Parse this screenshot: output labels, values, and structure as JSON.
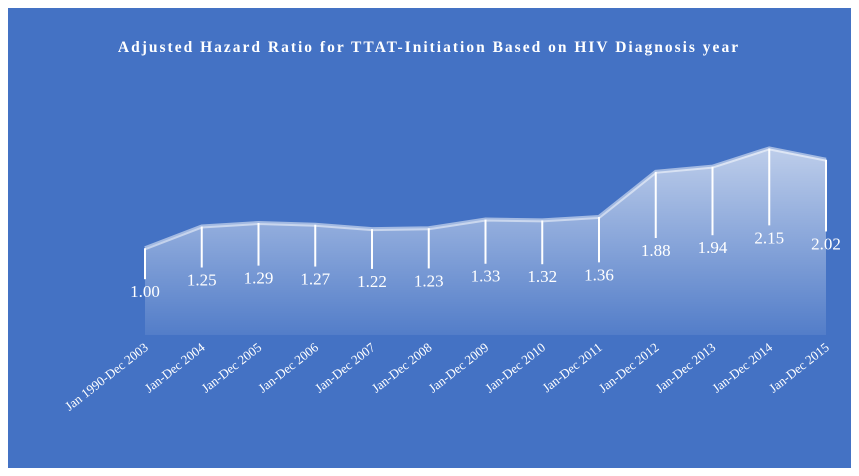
{
  "chart_data": {
    "type": "area",
    "title": "Adjusted Hazard Ratio for TTAT-Initiation Based on HIV Diagnosis year",
    "categories": [
      "Jan 1990-Dec 2003",
      "Jan-Dec 2004",
      "Jan-Dec 2005",
      "Jan-Dec 2006",
      "Jan-Dec 2007",
      "Jan-Dec 2008",
      "Jan-Dec 2009",
      "Jan-Dec 2010",
      "Jan-Dec 2011",
      "Jan-Dec 2012",
      "Jan-Dec 2013",
      "Jan-Dec 2014",
      "Jan-Dec 2015"
    ],
    "values": [
      1.0,
      1.25,
      1.29,
      1.27,
      1.22,
      1.23,
      1.33,
      1.32,
      1.36,
      1.88,
      1.94,
      2.15,
      2.02
    ],
    "value_labels": [
      "1.00",
      "1.25",
      "1.29",
      "1.27",
      "1.22",
      "1.23",
      "1.33",
      "1.32",
      "1.36",
      "1.88",
      "1.94",
      "2.15",
      "2.02"
    ],
    "color": "#ffffff",
    "background": "#4472c4",
    "ylim": [
      0,
      2.5
    ]
  }
}
